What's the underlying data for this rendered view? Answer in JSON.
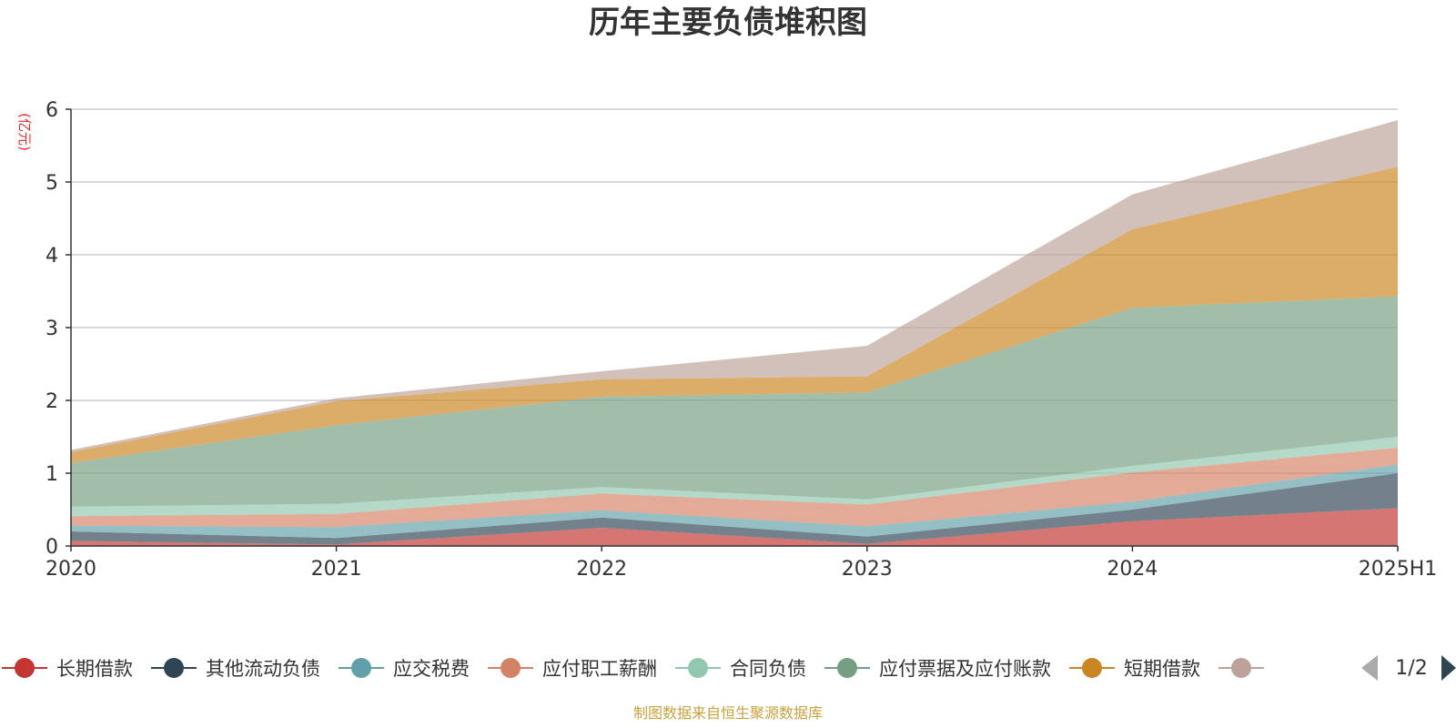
{
  "title": "历年主要负债堆积图",
  "source_note": "制图数据来自恒生聚源数据库",
  "legend_pager": "1/2",
  "chart_data": {
    "type": "area",
    "stacked": true,
    "title": "历年主要负债堆积图",
    "ylabel": "(亿元)",
    "x": [
      "2020",
      "2021",
      "2022",
      "2023",
      "2024",
      "2025H1"
    ],
    "ylim": [
      0,
      6
    ],
    "yticks": [
      0,
      1,
      2,
      3,
      4,
      5,
      6
    ],
    "grid": true,
    "legend_position": "bottom",
    "series": [
      {
        "name": "长期借款",
        "color": "#c23531",
        "values": [
          0.07,
          0.02,
          0.25,
          0.03,
          0.34,
          0.52
        ]
      },
      {
        "name": "其他流动负债",
        "color": "#2f4554",
        "values": [
          0.13,
          0.09,
          0.14,
          0.1,
          0.16,
          0.48
        ]
      },
      {
        "name": "应交税费",
        "color": "#61a0a8",
        "values": [
          0.08,
          0.15,
          0.1,
          0.14,
          0.11,
          0.12
        ]
      },
      {
        "name": "应付职工薪酬",
        "color": "#d48265",
        "values": [
          0.13,
          0.18,
          0.23,
          0.3,
          0.4,
          0.23
        ]
      },
      {
        "name": "合同负债",
        "color": "#91c7ae",
        "values": [
          0.13,
          0.14,
          0.09,
          0.07,
          0.09,
          0.15
        ]
      },
      {
        "name": "应付票据及应付账款",
        "color": "#749f83",
        "values": [
          0.6,
          1.08,
          1.24,
          1.47,
          2.17,
          1.93
        ]
      },
      {
        "name": "短期借款",
        "color": "#ca8622",
        "values": [
          0.15,
          0.33,
          0.24,
          0.22,
          1.08,
          1.78
        ]
      },
      {
        "name": "",
        "color": "#bda29a",
        "values": [
          0.03,
          0.04,
          0.11,
          0.42,
          0.48,
          0.64
        ]
      }
    ]
  }
}
